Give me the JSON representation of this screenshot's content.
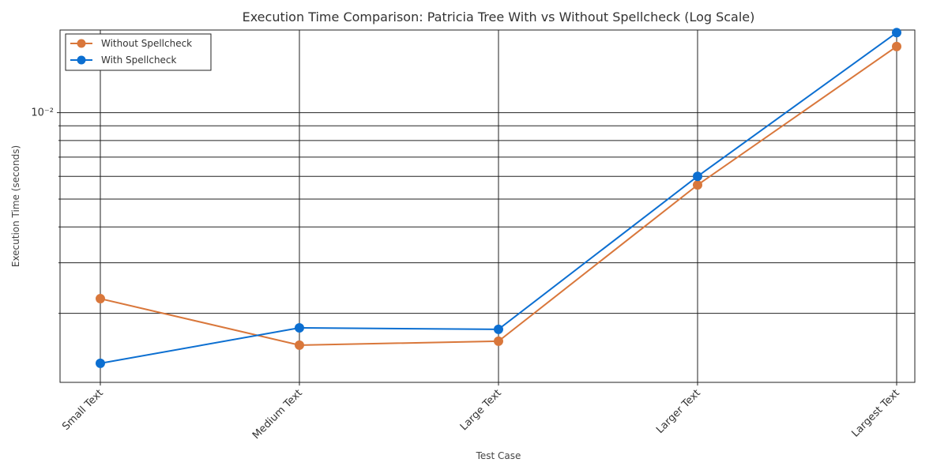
{
  "chart_data": {
    "type": "line",
    "title": "Execution Time Comparison: Patricia Tree With vs Without Spellcheck (Log Scale)",
    "xlabel": "Test Case",
    "ylabel": "Execution Time (seconds)",
    "yscale": "log",
    "ylim": [
      0.00115,
      0.0194
    ],
    "y_tick_label": "10⁻²",
    "categories": [
      "Small Text",
      "Medium Text",
      "Large Text",
      "Larger Text",
      "Largest Text"
    ],
    "series": [
      {
        "name": "Without Spellcheck",
        "color": "#d9773b",
        "values": [
          0.00225,
          0.00155,
          0.0016,
          0.0056,
          0.017
        ]
      },
      {
        "name": "With Spellcheck",
        "color": "#0c6fd1",
        "values": [
          0.00134,
          0.00178,
          0.00176,
          0.006,
          0.019
        ]
      }
    ],
    "grid": true,
    "legend_position": "top-left"
  }
}
